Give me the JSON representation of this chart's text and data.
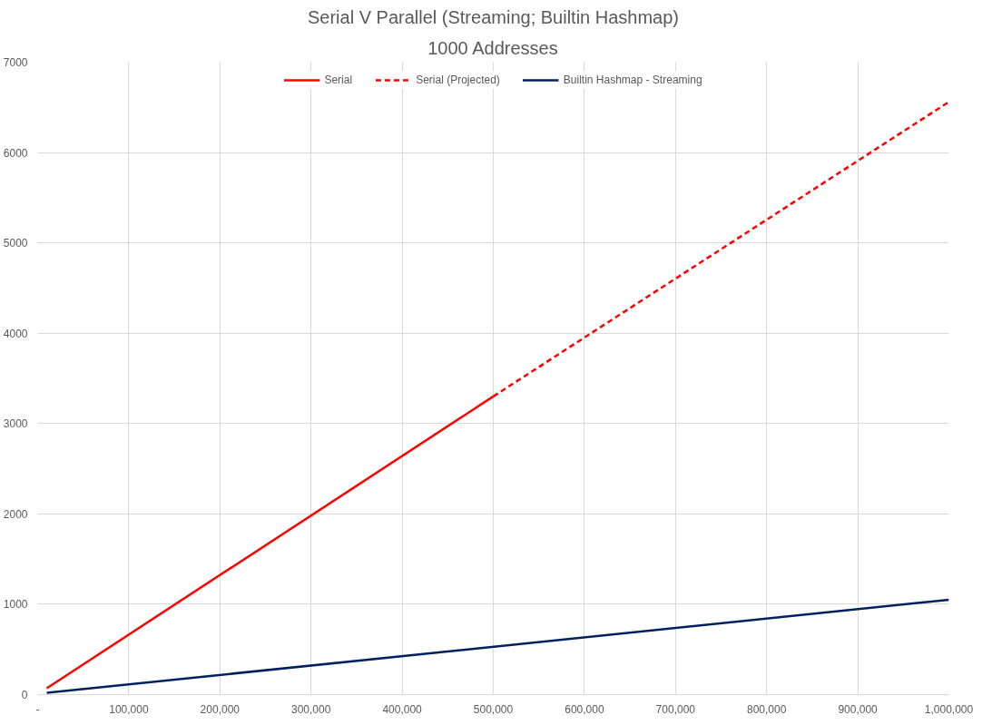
{
  "chart_data": {
    "type": "line",
    "title": "Serial V Parallel (Streaming; Builtin Hashmap)",
    "subtitle": "1000 Addresses",
    "series": [
      {
        "name": "Serial",
        "color": "#ff0000",
        "line_style": "solid",
        "x": [
          10000,
          500000
        ],
        "values": [
          70,
          3300
        ]
      },
      {
        "name": "Serial (Projected)",
        "color": "#ff0000",
        "line_style": "dashed",
        "x": [
          500000,
          1000000
        ],
        "values": [
          3300,
          6560
        ]
      },
      {
        "name": "Builtin Hashmap - Streaming",
        "color": "#002060",
        "line_style": "solid",
        "x": [
          10000,
          1000000
        ],
        "values": [
          20,
          1050
        ]
      }
    ],
    "xlim": [
      0,
      1000000
    ],
    "ylim": [
      0,
      7000
    ],
    "xticks": [
      {
        "value": 0,
        "label": "-"
      },
      {
        "value": 100000,
        "label": "100,000"
      },
      {
        "value": 200000,
        "label": "200,000"
      },
      {
        "value": 300000,
        "label": "300,000"
      },
      {
        "value": 400000,
        "label": "400,000"
      },
      {
        "value": 500000,
        "label": "500,000"
      },
      {
        "value": 600000,
        "label": "600,000"
      },
      {
        "value": 700000,
        "label": "700,000"
      },
      {
        "value": 800000,
        "label": "800,000"
      },
      {
        "value": 900000,
        "label": "900,000"
      },
      {
        "value": 1000000,
        "label": "1,000,000"
      }
    ],
    "yticks": [
      0,
      1000,
      2000,
      3000,
      4000,
      5000,
      6000,
      7000
    ],
    "grid": true,
    "legend": "top",
    "marker": "none"
  }
}
